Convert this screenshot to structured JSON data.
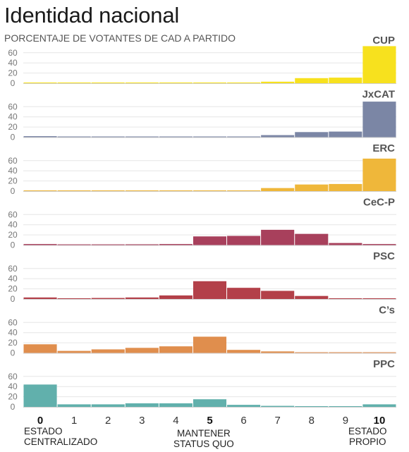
{
  "title": "Identidad nacional",
  "subtitle": "PORCENTAJE DE VOTANTES DE CAD A PARTIDO",
  "notes": {
    "left": [
      "ESTADO",
      "CENTRALIZADO"
    ],
    "middle": [
      "MANTENER",
      "STATUS QUO"
    ],
    "right": [
      "ESTADO",
      "PROPIO"
    ]
  },
  "chart_data": {
    "type": "bar",
    "categories": [
      "0",
      "1",
      "2",
      "3",
      "4",
      "5",
      "6",
      "7",
      "8",
      "9",
      "10"
    ],
    "bold_categories": [
      "0",
      "5",
      "10"
    ],
    "y_ticks": [
      0,
      20,
      40,
      60
    ],
    "ylim": [
      0,
      75
    ],
    "grid": true,
    "series": [
      {
        "name": "CUP",
        "color": "#f7e11e",
        "values": [
          0.5,
          0.3,
          0.3,
          0.3,
          0.3,
          0.3,
          0.5,
          3,
          10,
          11,
          73
        ]
      },
      {
        "name": "JxCAT",
        "color": "#7b86a5",
        "values": [
          2,
          0.5,
          0.5,
          0.5,
          0.5,
          0.5,
          1,
          4,
          10,
          11,
          70
        ]
      },
      {
        "name": "ERC",
        "color": "#efb73a",
        "values": [
          0.8,
          0.3,
          0.3,
          0.3,
          0.3,
          0.3,
          1,
          6,
          13,
          14,
          64
        ]
      },
      {
        "name": "CeC-P",
        "color": "#a8405c",
        "values": [
          2,
          1,
          1,
          1.5,
          2,
          17,
          18,
          30,
          22,
          4,
          2
        ]
      },
      {
        "name": "PSC",
        "color": "#b34049",
        "values": [
          3,
          1,
          2,
          3,
          7,
          35,
          22,
          16,
          6,
          1,
          0.5
        ]
      },
      {
        "name": "C’s",
        "color": "#e08e4d",
        "values": [
          17,
          4,
          7,
          10,
          13,
          32,
          6,
          3,
          0.5,
          0.5,
          0.5
        ]
      },
      {
        "name": "PPC",
        "color": "#61b0ac",
        "values": [
          44,
          5,
          5,
          7,
          7,
          15,
          4,
          2,
          1,
          0.5,
          5
        ]
      }
    ]
  }
}
